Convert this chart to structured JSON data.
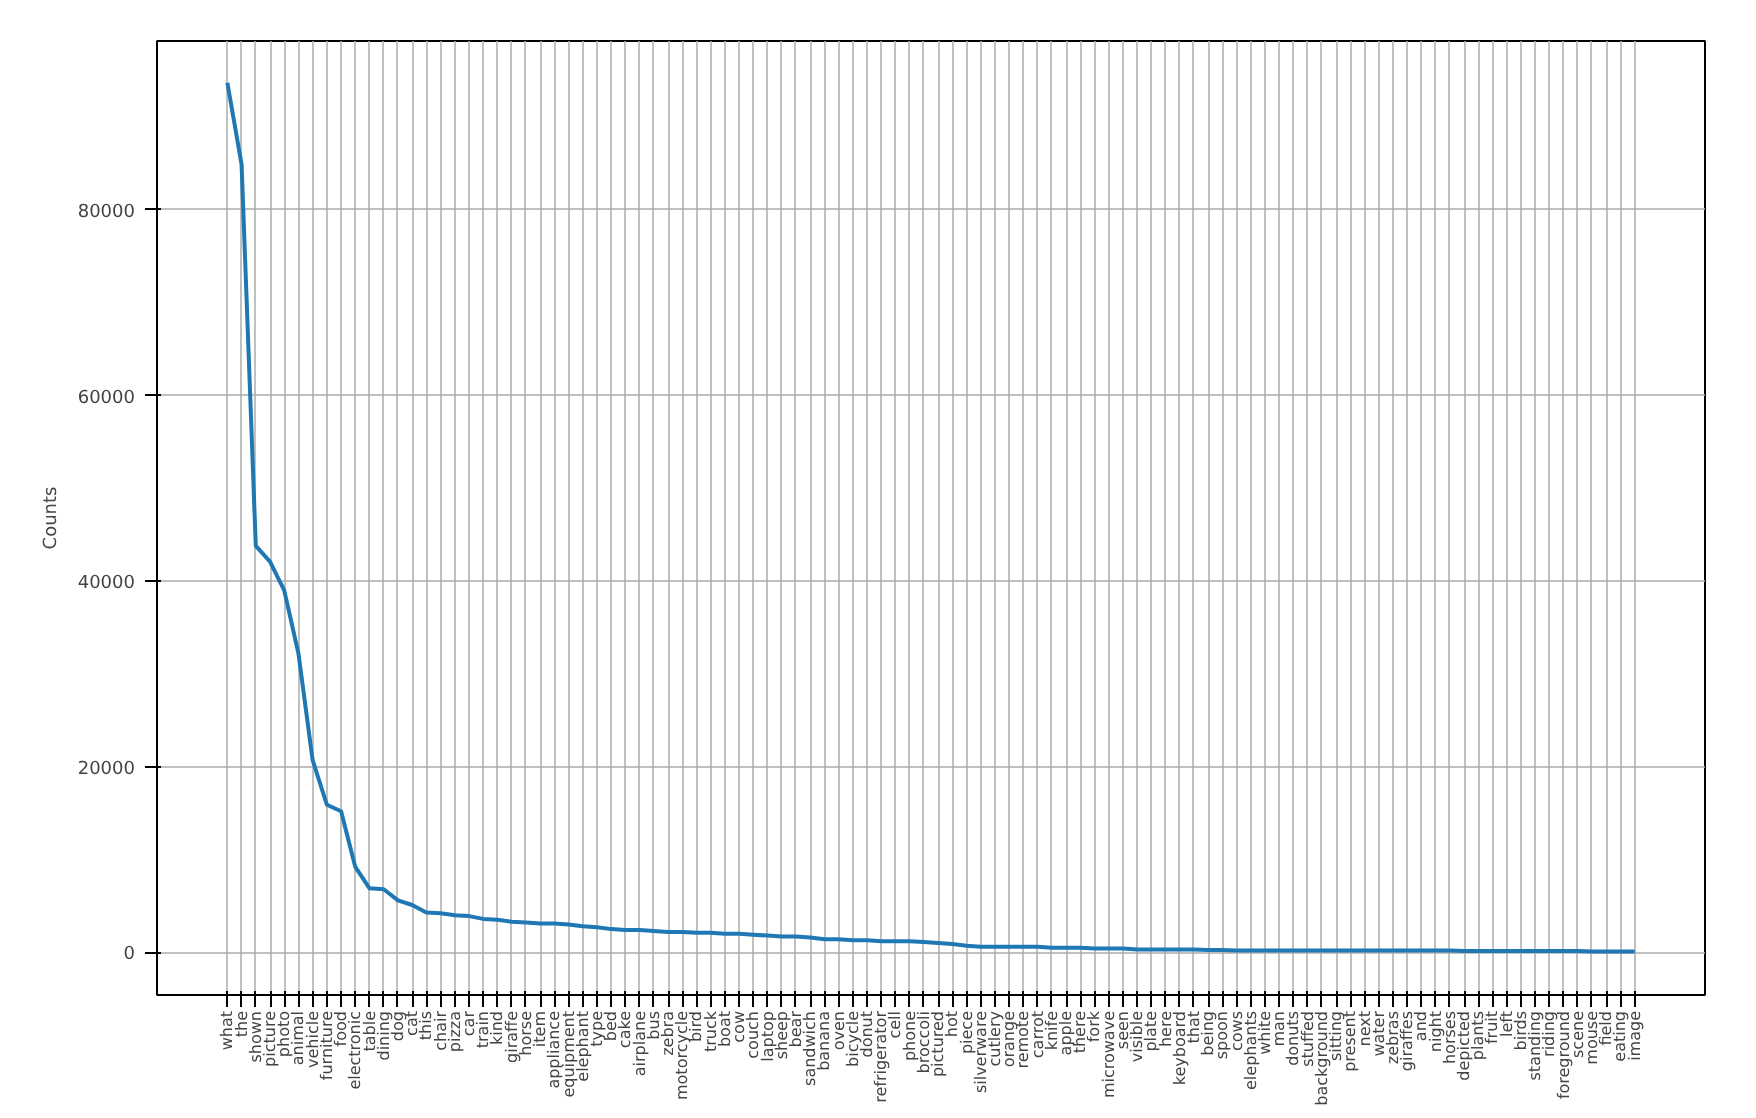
{
  "chart_data": {
    "type": "line",
    "ylabel": "Counts",
    "categories": [
      "what",
      "the",
      "shown",
      "picture",
      "photo",
      "animal",
      "vehicle",
      "furniture",
      "food",
      "electronic",
      "table",
      "dining",
      "dog",
      "cat",
      "this",
      "chair",
      "pizza",
      "car",
      "train",
      "kind",
      "giraffe",
      "horse",
      "item",
      "appliance",
      "equipment",
      "elephant",
      "type",
      "bed",
      "cake",
      "airplane",
      "bus",
      "zebra",
      "motorcycle",
      "bird",
      "truck",
      "boat",
      "cow",
      "couch",
      "laptop",
      "sheep",
      "bear",
      "sandwich",
      "banana",
      "oven",
      "bicycle",
      "donut",
      "refrigerator",
      "cell",
      "phone",
      "broccoli",
      "pictured",
      "hot",
      "piece",
      "silverware",
      "cutlery",
      "orange",
      "remote",
      "carrot",
      "knife",
      "apple",
      "there",
      "fork",
      "microwave",
      "seen",
      "visible",
      "plate",
      "here",
      "keyboard",
      "that",
      "being",
      "spoon",
      "cows",
      "elephants",
      "white",
      "man",
      "donuts",
      "stuffed",
      "background",
      "sitting",
      "present",
      "next",
      "water",
      "zebras",
      "giraffes",
      "and",
      "night",
      "horses",
      "depicted",
      "plants",
      "fruit",
      "left",
      "birds",
      "standing",
      "riding",
      "foreground",
      "scene",
      "mouse",
      "field",
      "eating",
      "image"
    ],
    "series": [
      {
        "color": "#1f77b4",
        "values": [
          93700,
          84900,
          43800,
          42100,
          39000,
          32200,
          20700,
          15900,
          15200,
          9200,
          6900,
          6800,
          5600,
          5100,
          4300,
          4200,
          4000,
          3900,
          3600,
          3500,
          3300,
          3200,
          3100,
          3100,
          3000,
          2800,
          2700,
          2500,
          2400,
          2400,
          2300,
          2200,
          2200,
          2100,
          2100,
          2000,
          2000,
          1900,
          1800,
          1700,
          1700,
          1600,
          1400,
          1400,
          1300,
          1300,
          1200,
          1200,
          1200,
          1100,
          1000,
          900,
          700,
          600,
          600,
          600,
          600,
          600,
          500,
          500,
          500,
          400,
          400,
          400,
          300,
          300,
          300,
          300,
          300,
          250,
          250,
          200,
          200,
          200,
          200,
          200,
          200,
          200,
          200,
          200,
          200,
          200,
          200,
          200,
          200,
          200,
          200,
          150,
          150,
          150,
          150,
          150,
          150,
          150,
          150,
          150,
          100,
          100,
          100,
          100
        ]
      }
    ],
    "ylim": [
      -4600,
      98200
    ],
    "yticks": [
      0,
      20000,
      40000,
      60000,
      80000
    ],
    "grid": true,
    "line_style": "solid"
  }
}
